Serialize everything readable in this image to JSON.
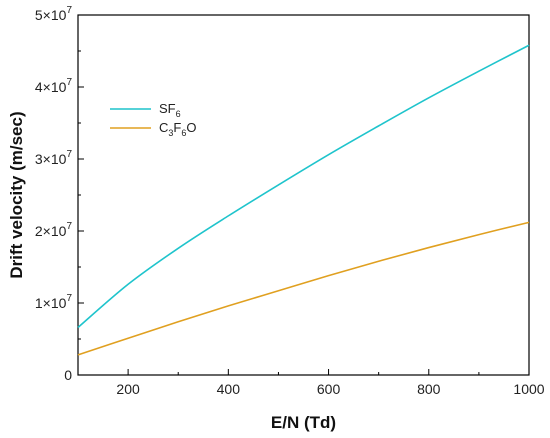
{
  "chart_data": {
    "type": "line",
    "xlabel": "E/N (Td)",
    "ylabel": "Drift velocity (m/sec)",
    "xlim": [
      100,
      1000
    ],
    "ylim": [
      0,
      50000000
    ],
    "x_ticks": [
      200,
      400,
      600,
      800,
      1000
    ],
    "y_ticks": [
      {
        "value": 0,
        "mantissa": "0",
        "exponent": ""
      },
      {
        "value": 10000000,
        "mantissa": "1×10",
        "exponent": "7"
      },
      {
        "value": 20000000,
        "mantissa": "2×10",
        "exponent": "7"
      },
      {
        "value": 30000000,
        "mantissa": "3×10",
        "exponent": "7"
      },
      {
        "value": 40000000,
        "mantissa": "4×10",
        "exponent": "7"
      },
      {
        "value": 50000000,
        "mantissa": "5×10",
        "exponent": "7"
      }
    ],
    "grid": false,
    "legend_position": "upper-left",
    "series": [
      {
        "name_main": "SF",
        "name_sub": "6",
        "name_tail": "",
        "color": "#1fc4cc",
        "x": [
          100,
          200,
          300,
          400,
          500,
          600,
          700,
          800,
          900,
          1000
        ],
        "y": [
          6600000,
          12600000,
          17600000,
          22100000,
          26400000,
          30600000,
          34600000,
          38500000,
          42200000,
          45800000
        ]
      },
      {
        "name_main": "C",
        "name_sub": "3",
        "name_tail": "F",
        "name_sub2": "6",
        "name_tail2": "O",
        "color": "#e0a020",
        "x": [
          100,
          200,
          300,
          400,
          500,
          600,
          700,
          800,
          900,
          1000
        ],
        "y": [
          2800000,
          5100000,
          7400000,
          9600000,
          11700000,
          13800000,
          15800000,
          17700000,
          19500000,
          21200000
        ]
      }
    ]
  }
}
